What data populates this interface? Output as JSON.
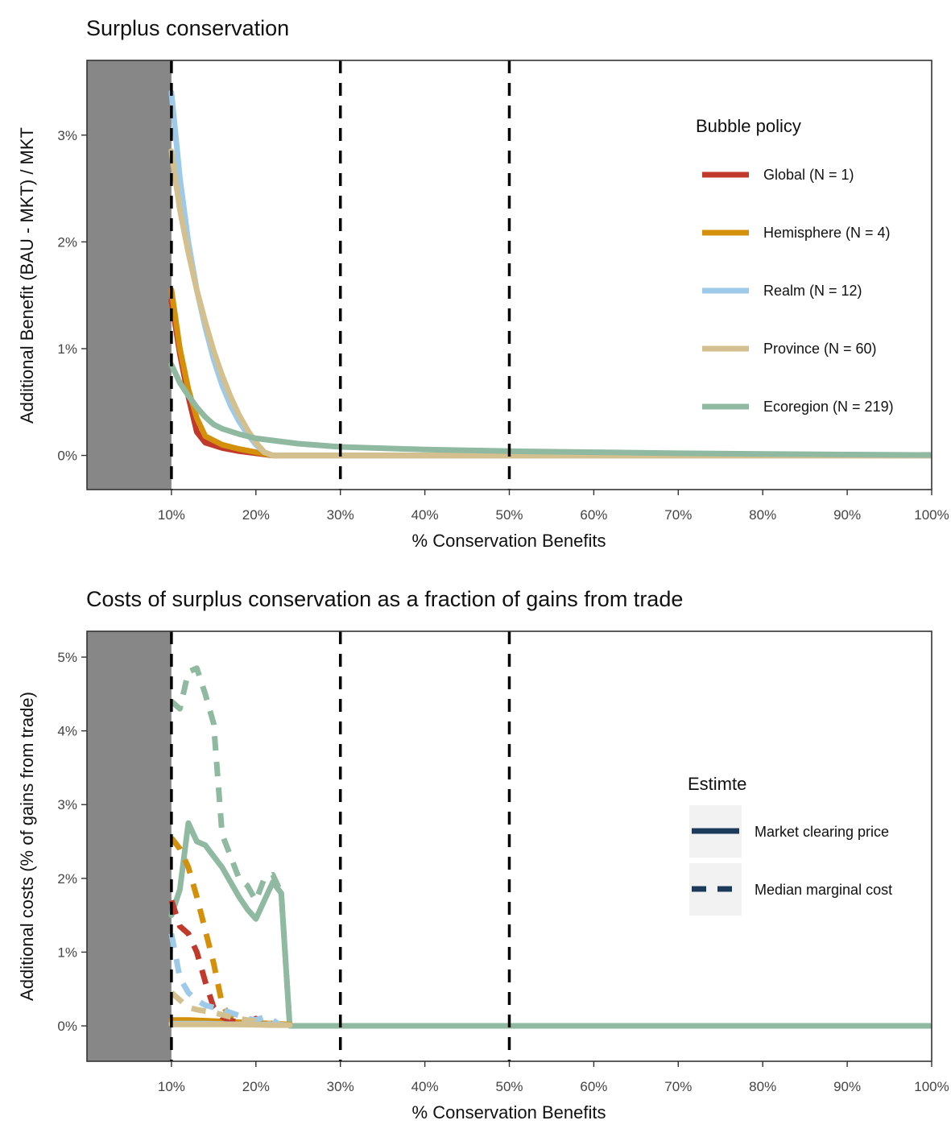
{
  "colors": {
    "global": "#C0392B",
    "hemisphere": "#D4900A",
    "realm": "#9ECAE9",
    "province": "#D4C08E",
    "ecoregion": "#8FB9A0",
    "legend_key": "#1B3A5C",
    "shade": "#878787",
    "vline": "#000000"
  },
  "chart_data": [
    {
      "type": "line",
      "title": "Surplus conservation",
      "xlabel": "% Conservation Benefits",
      "ylabel": "Additional Benefit (BAU - MKT) / MKT",
      "xlim": [
        0,
        100
      ],
      "ylim": [
        -0.32,
        3.7
      ],
      "x_ticks": [
        10,
        20,
        30,
        40,
        50,
        60,
        70,
        80,
        90,
        100
      ],
      "x_tick_labels": [
        "10%",
        "20%",
        "30%",
        "40%",
        "50%",
        "60%",
        "70%",
        "80%",
        "90%",
        "100%"
      ],
      "y_ticks": [
        0,
        1,
        2,
        3
      ],
      "y_tick_labels": [
        "0%",
        "1%",
        "2%",
        "3%"
      ],
      "shaded_range": [
        0,
        10
      ],
      "vlines": [
        10,
        30,
        50
      ],
      "grid": false,
      "legend": {
        "title": "Bubble policy",
        "placement": "right",
        "entries": [
          "Global (N = 1)",
          "Hemisphere (N = 4)",
          "Realm (N = 12)",
          "Province (N = 60)",
          "Ecoregion (N = 219)"
        ]
      },
      "series": [
        {
          "key": "global",
          "name": "Global (N = 1)",
          "style": "solid",
          "x": [
            10,
            11,
            12,
            13,
            14,
            16,
            18,
            20,
            22,
            100
          ],
          "y": [
            1.45,
            0.95,
            0.55,
            0.22,
            0.12,
            0.07,
            0.04,
            0.02,
            0.0,
            0.0
          ]
        },
        {
          "key": "hemisphere",
          "name": "Hemisphere (N = 4)",
          "style": "solid",
          "x": [
            10,
            11,
            12,
            13,
            14,
            16,
            18,
            20,
            22,
            100
          ],
          "y": [
            1.55,
            1.0,
            0.62,
            0.35,
            0.18,
            0.1,
            0.06,
            0.03,
            0.0,
            0.0
          ]
        },
        {
          "key": "realm",
          "name": "Realm (N = 12)",
          "style": "solid",
          "x": [
            10,
            11,
            12,
            13,
            14,
            15,
            16,
            17,
            18,
            19,
            20,
            21,
            22,
            100
          ],
          "y": [
            3.4,
            2.6,
            2.0,
            1.55,
            1.2,
            0.9,
            0.66,
            0.47,
            0.32,
            0.2,
            0.1,
            0.03,
            0.0,
            0.0
          ]
        },
        {
          "key": "province",
          "name": "Province (N = 60)",
          "style": "solid",
          "x": [
            10,
            11,
            12,
            13,
            14,
            15,
            16,
            17,
            18,
            19,
            20,
            21,
            22,
            100
          ],
          "y": [
            2.85,
            2.3,
            1.9,
            1.55,
            1.25,
            0.98,
            0.75,
            0.55,
            0.38,
            0.24,
            0.12,
            0.03,
            0.0,
            0.0
          ]
        },
        {
          "key": "ecoregion",
          "name": "Ecoregion (N = 219)",
          "style": "solid",
          "x": [
            10,
            11,
            12,
            13,
            14,
            15,
            16,
            18,
            20,
            25,
            30,
            40,
            50,
            60,
            70,
            80,
            90,
            100
          ],
          "y": [
            0.85,
            0.68,
            0.56,
            0.45,
            0.36,
            0.29,
            0.25,
            0.2,
            0.16,
            0.11,
            0.08,
            0.055,
            0.04,
            0.03,
            0.02,
            0.014,
            0.008,
            0.004
          ]
        }
      ]
    },
    {
      "type": "line",
      "title": "Costs of surplus conservation as a fraction of gains from trade",
      "xlabel": "% Conservation Benefits",
      "ylabel": "Additional costs (% of gains from trade)",
      "xlim": [
        0,
        100
      ],
      "ylim": [
        -0.48,
        5.35
      ],
      "x_ticks": [
        10,
        20,
        30,
        40,
        50,
        60,
        70,
        80,
        90,
        100
      ],
      "x_tick_labels": [
        "10%",
        "20%",
        "30%",
        "40%",
        "50%",
        "60%",
        "70%",
        "80%",
        "90%",
        "100%"
      ],
      "y_ticks": [
        0,
        1,
        2,
        3,
        4,
        5
      ],
      "y_tick_labels": [
        "0%",
        "1%",
        "2%",
        "3%",
        "4%",
        "5%"
      ],
      "shaded_range": [
        0,
        10
      ],
      "vlines": [
        10,
        30,
        50
      ],
      "grid": false,
      "legend": {
        "title": "Estimte",
        "placement": "right",
        "entries": [
          "Market clearing price",
          "Median marginal cost"
        ]
      },
      "series": [
        {
          "key": "ecoregion",
          "name": "",
          "style": "dashed",
          "x": [
            10,
            11,
            12,
            13,
            14,
            15,
            16,
            17,
            18,
            19,
            20,
            21,
            22,
            23,
            24,
            25,
            100
          ],
          "y": [
            4.4,
            4.3,
            4.8,
            4.85,
            4.5,
            4.1,
            2.6,
            2.3,
            2.0,
            1.9,
            1.7,
            2.0,
            2.05,
            1.8,
            0.0,
            0.0,
            0.0
          ]
        },
        {
          "key": "ecoregion",
          "name": "",
          "style": "solid",
          "x": [
            10,
            11,
            12,
            13,
            14,
            15,
            16,
            17,
            18,
            19,
            20,
            21,
            22,
            23,
            24,
            25,
            100
          ],
          "y": [
            1.5,
            1.85,
            2.75,
            2.5,
            2.45,
            2.3,
            2.15,
            1.95,
            1.75,
            1.58,
            1.45,
            1.7,
            1.95,
            1.8,
            0.0,
            0.0,
            0.0
          ]
        },
        {
          "key": "hemisphere",
          "name": "",
          "style": "dashed",
          "x": [
            10,
            11,
            12,
            13,
            14,
            15,
            16,
            17,
            18,
            19,
            20,
            21,
            22,
            23,
            24
          ],
          "y": [
            2.55,
            2.4,
            2.15,
            1.75,
            1.3,
            0.85,
            0.3,
            0.1,
            0.08,
            0.06,
            0.05,
            0.04,
            0.03,
            0.02,
            0.01
          ]
        },
        {
          "key": "hemisphere",
          "name": "",
          "style": "solid",
          "x": [
            10,
            12,
            14,
            16,
            18,
            20,
            22,
            24
          ],
          "y": [
            0.08,
            0.08,
            0.07,
            0.06,
            0.05,
            0.04,
            0.03,
            0.02
          ]
        },
        {
          "key": "global",
          "name": "",
          "style": "dashed",
          "x": [
            10,
            11,
            12,
            13,
            14,
            15,
            16,
            17,
            18,
            19,
            20,
            21,
            22
          ],
          "y": [
            1.7,
            1.35,
            1.25,
            1.0,
            0.6,
            0.25,
            0.12,
            0.07,
            0.05,
            0.05,
            0.1,
            0.05,
            0.02
          ]
        },
        {
          "key": "realm",
          "name": "",
          "style": "dashed",
          "x": [
            10,
            11,
            12,
            13,
            14,
            15,
            16,
            17,
            18,
            19,
            20,
            21,
            22,
            23
          ],
          "y": [
            1.25,
            0.65,
            0.45,
            0.35,
            0.28,
            0.25,
            0.22,
            0.18,
            0.14,
            0.1,
            0.08,
            0.12,
            0.08,
            0.0
          ]
        },
        {
          "key": "province",
          "name": "",
          "style": "dashed",
          "x": [
            10,
            11,
            12,
            13,
            14,
            15,
            16,
            17,
            18,
            19,
            20,
            21,
            22
          ],
          "y": [
            0.45,
            0.35,
            0.25,
            0.22,
            0.2,
            0.18,
            0.15,
            0.12,
            0.1,
            0.08,
            0.06,
            0.04,
            0.02
          ]
        },
        {
          "key": "realm",
          "name": "",
          "style": "solid",
          "x": [
            10,
            14,
            18,
            22,
            24
          ],
          "y": [
            0.03,
            0.03,
            0.02,
            0.02,
            0.01
          ]
        },
        {
          "key": "province",
          "name": "",
          "style": "solid",
          "x": [
            10,
            14,
            18,
            22,
            24
          ],
          "y": [
            0.02,
            0.02,
            0.02,
            0.01,
            0.01
          ]
        }
      ]
    }
  ]
}
